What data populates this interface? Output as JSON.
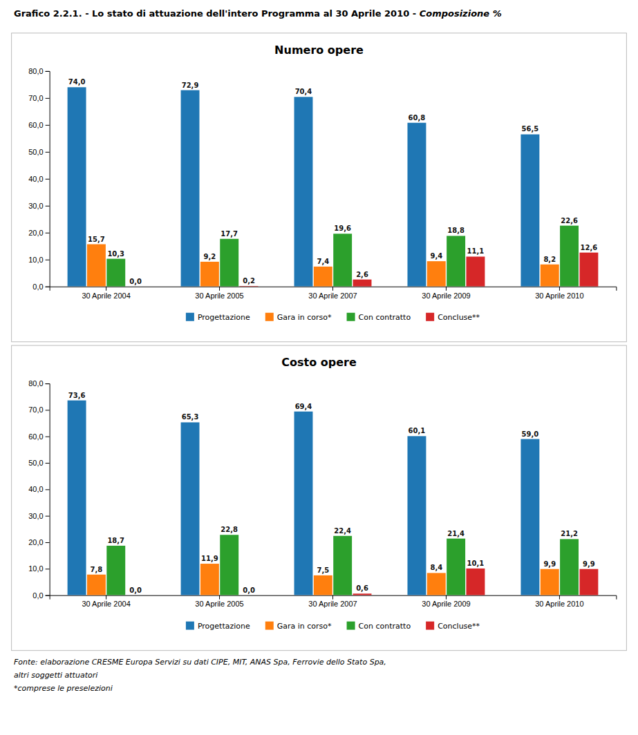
{
  "title": "Grafico 2.2.1. - Lo stato di attuazione dell'intero Programma al 30 Aprile 2010 - ",
  "subtitle": "Composizione %",
  "annotations": [
    "Fonte: elaborazione CRESME Europa Servizi su dati CIPE, MIT, ANAS Spa, Ferrovie dello Stato Spa,",
    "altri soggetti attuatori",
    "*comprese le preselezioni"
  ],
  "chart_data": [
    {
      "type": "bar",
      "title": "Numero opere",
      "categories": [
        "30 Aprile 2004",
        "30 Aprile 2005",
        "30 Aprile 2007",
        "30 Aprile 2009",
        "30 Aprile 2010"
      ],
      "series": [
        {
          "name": "Progettazione",
          "values": [
            74.0,
            72.9,
            70.4,
            60.8,
            56.5
          ],
          "value_labels": [
            "74,0",
            "72,9",
            "70,4",
            "60,8",
            "56,5"
          ]
        },
        {
          "name": "Gara in corso*",
          "values": [
            15.7,
            9.2,
            7.4,
            9.4,
            8.2
          ],
          "value_labels": [
            "15,7",
            "9,2",
            "7,4",
            "9,4",
            "8,2"
          ]
        },
        {
          "name": "Con contratto",
          "values": [
            10.3,
            17.7,
            19.6,
            18.8,
            22.6
          ],
          "value_labels": [
            "10,3",
            "17,7",
            "19,6",
            "18,8",
            "22,6"
          ]
        },
        {
          "name": "Concluse**",
          "values": [
            0.0,
            0.2,
            2.6,
            11.1,
            12.6
          ],
          "value_labels": [
            "0,0",
            "0,2",
            "2,6",
            "11,1",
            "12,6"
          ]
        }
      ],
      "ylim": [
        0,
        80
      ],
      "yticks": [
        {
          "value": 0,
          "label": "0,0"
        },
        {
          "value": 10,
          "label": "10,0"
        },
        {
          "value": 20,
          "label": "20,0"
        },
        {
          "value": 30,
          "label": "30,0"
        },
        {
          "value": 40,
          "label": "40,0"
        },
        {
          "value": 50,
          "label": "50,0"
        },
        {
          "value": 60,
          "label": "60,0"
        },
        {
          "value": 70,
          "label": "70,0"
        },
        {
          "value": 80,
          "label": "80,0"
        }
      ],
      "grid": false,
      "legend": "bottom",
      "data_labels": true
    },
    {
      "type": "bar",
      "title": "Costo opere",
      "categories": [
        "30 Aprile 2004",
        "30 Aprile 2005",
        "30 Aprile 2007",
        "30 Aprile 2009",
        "30 Aprile 2010"
      ],
      "series": [
        {
          "name": "Progettazione",
          "values": [
            73.6,
            65.3,
            69.4,
            60.1,
            59.0
          ],
          "value_labels": [
            "73,6",
            "65,3",
            "69,4",
            "60,1",
            "59,0"
          ]
        },
        {
          "name": "Gara in corso*",
          "values": [
            7.8,
            11.9,
            7.5,
            8.4,
            9.9
          ],
          "value_labels": [
            "7,8",
            "11,9",
            "7,5",
            "8,4",
            "9,9"
          ]
        },
        {
          "name": "Con contratto",
          "values": [
            18.7,
            22.8,
            22.4,
            21.4,
            21.2
          ],
          "value_labels": [
            "18,7",
            "22,8",
            "22,4",
            "21,4",
            "21,2"
          ]
        },
        {
          "name": "Concluse**",
          "values": [
            0.0,
            0.0,
            0.6,
            10.1,
            9.9
          ],
          "value_labels": [
            "0,0",
            "0,0",
            "0,6",
            "10,1",
            "9,9"
          ]
        }
      ],
      "ylim": [
        0,
        80
      ],
      "yticks": [
        {
          "value": 0,
          "label": "0,0"
        },
        {
          "value": 10,
          "label": "10,0"
        },
        {
          "value": 20,
          "label": "20,0"
        },
        {
          "value": 30,
          "label": "30,0"
        },
        {
          "value": 40,
          "label": "40,0"
        },
        {
          "value": 50,
          "label": "50,0"
        },
        {
          "value": 60,
          "label": "60,0"
        },
        {
          "value": 70,
          "label": "70,0"
        },
        {
          "value": 80,
          "label": "80,0"
        }
      ],
      "grid": false,
      "legend": "bottom",
      "data_labels": true
    }
  ]
}
